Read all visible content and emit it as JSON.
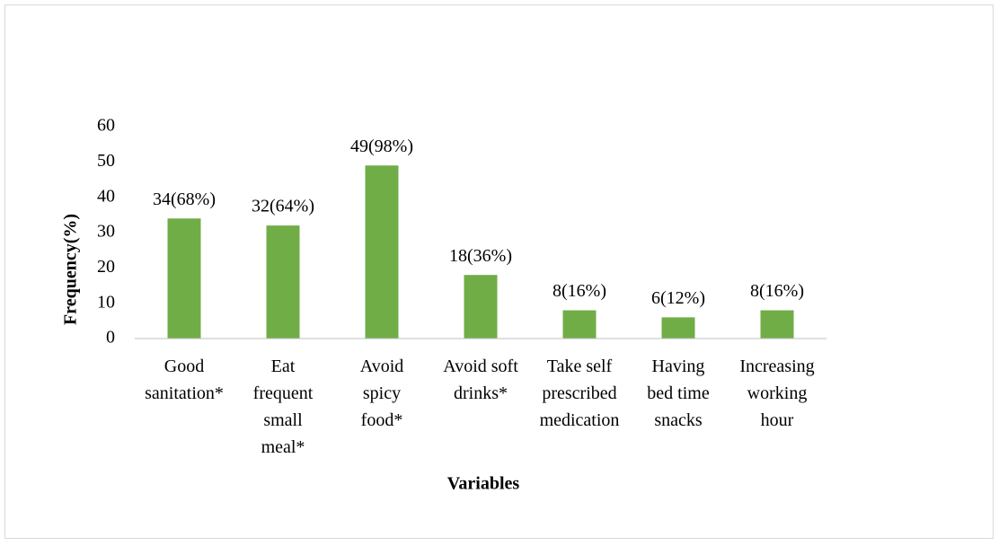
{
  "chart_data": {
    "type": "bar",
    "categories": [
      "Good\nsanitation*",
      "Eat\nfrequent\nsmall\nmeal*",
      "Avoid\nspicy\nfood*",
      "Avoid soft\ndrinks*",
      "Take self\nprescribed\nmedication",
      "Having\nbed time\nsnacks",
      "Increasing\nworking\nhour"
    ],
    "values": [
      34,
      32,
      49,
      18,
      8,
      6,
      8
    ],
    "value_labels": [
      "34(68%)",
      "32(64%)",
      "49(98%)",
      "18(36%)",
      "8(16%)",
      "6(12%)",
      "8(16%)"
    ],
    "color": "#70ad47",
    "ylim": [
      0,
      60
    ],
    "yticks": [
      0,
      10,
      20,
      30,
      40,
      50,
      60
    ],
    "xlabel": "Variables",
    "ylabel": "Frequency(%)"
  }
}
